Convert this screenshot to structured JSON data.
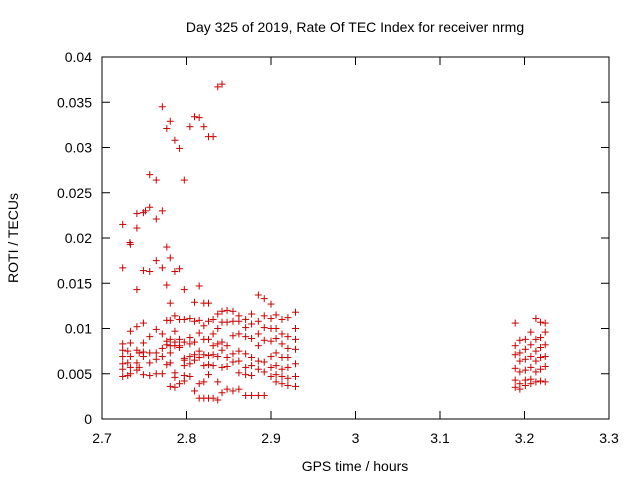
{
  "chart_data": {
    "type": "scatter",
    "title": "Day 325 of 2019, Rate Of TEC Index for receiver nrmg",
    "xlabel": "GPS time / hours",
    "ylabel": "ROTI / TECUs",
    "xlim": [
      2.7,
      3.3
    ],
    "ylim": [
      0,
      0.04
    ],
    "xticks": [
      "2.7",
      "2.8",
      "2.9",
      "3",
      "3.1",
      "3.2",
      "3.3"
    ],
    "yticks": [
      "0",
      "0.005",
      "0.01",
      "0.015",
      "0.02",
      "0.025",
      "0.03",
      "0.035",
      "0.04"
    ],
    "grid": false,
    "marker": "+",
    "series_color": "#cc0000",
    "series": [
      {
        "name": "ROTI",
        "points": [
          [
            2.7245,
            0.0215
          ],
          [
            2.7245,
            0.0167
          ],
          [
            2.7245,
            0.0083
          ],
          [
            2.7245,
            0.0076
          ],
          [
            2.7245,
            0.0069
          ],
          [
            2.7245,
            0.0061
          ],
          [
            2.7245,
            0.0055
          ],
          [
            2.7245,
            0.0047
          ],
          [
            2.7305,
            0.0075
          ],
          [
            2.7305,
            0.0062
          ],
          [
            2.7305,
            0.0048
          ],
          [
            2.733,
            0.0195
          ],
          [
            2.7336,
            0.0193
          ],
          [
            2.7336,
            0.0097
          ],
          [
            2.7336,
            0.0084
          ],
          [
            2.7336,
            0.0069
          ],
          [
            2.7336,
            0.0057
          ],
          [
            2.7336,
            0.005
          ],
          [
            2.7413,
            0.0227
          ],
          [
            2.7413,
            0.0211
          ],
          [
            2.7413,
            0.0143
          ],
          [
            2.7413,
            0.0102
          ],
          [
            2.7413,
            0.0076
          ],
          [
            2.7413,
            0.0062
          ],
          [
            2.7413,
            0.0054
          ],
          [
            2.744,
            0.0073
          ],
          [
            2.744,
            0.0057
          ],
          [
            2.749,
            0.0228
          ],
          [
            2.749,
            0.0164
          ],
          [
            2.749,
            0.0106
          ],
          [
            2.749,
            0.0084
          ],
          [
            2.749,
            0.0074
          ],
          [
            2.749,
            0.0069
          ],
          [
            2.749,
            0.0049
          ],
          [
            2.7515,
            0.023
          ],
          [
            2.7565,
            0.027
          ],
          [
            2.7565,
            0.0234
          ],
          [
            2.7565,
            0.0163
          ],
          [
            2.7565,
            0.0091
          ],
          [
            2.7565,
            0.0073
          ],
          [
            2.7565,
            0.0062
          ],
          [
            2.7565,
            0.0048
          ],
          [
            2.7642,
            0.0264
          ],
          [
            2.7642,
            0.0221
          ],
          [
            2.7642,
            0.0175
          ],
          [
            2.7642,
            0.0099
          ],
          [
            2.7642,
            0.0073
          ],
          [
            2.7642,
            0.0066
          ],
          [
            2.7642,
            0.005
          ],
          [
            2.7714,
            0.0345
          ],
          [
            2.7714,
            0.023
          ],
          [
            2.7714,
            0.0167
          ],
          [
            2.7714,
            0.0094
          ],
          [
            2.7714,
            0.0078
          ],
          [
            2.7714,
            0.0069
          ],
          [
            2.7714,
            0.005
          ],
          [
            2.7767,
            0.0321
          ],
          [
            2.7767,
            0.019
          ],
          [
            2.7767,
            0.0148
          ],
          [
            2.7767,
            0.0109
          ],
          [
            2.7767,
            0.0086
          ],
          [
            2.7767,
            0.0082
          ],
          [
            2.7767,
            0.006
          ],
          [
            2.7808,
            0.0329
          ],
          [
            2.7808,
            0.0178
          ],
          [
            2.7808,
            0.0128
          ],
          [
            2.7808,
            0.0109
          ],
          [
            2.7808,
            0.0088
          ],
          [
            2.7808,
            0.0081
          ],
          [
            2.7808,
            0.0073
          ],
          [
            2.7808,
            0.0062
          ],
          [
            2.7808,
            0.0036
          ],
          [
            2.7863,
            0.0308
          ],
          [
            2.7863,
            0.0163
          ],
          [
            2.7863,
            0.0114
          ],
          [
            2.7863,
            0.0097
          ],
          [
            2.7863,
            0.0085
          ],
          [
            2.7863,
            0.0081
          ],
          [
            2.7863,
            0.0051
          ],
          [
            2.7863,
            0.0046
          ],
          [
            2.7863,
            0.0035
          ],
          [
            2.7918,
            0.0299
          ],
          [
            2.7918,
            0.0166
          ],
          [
            2.7918,
            0.011
          ],
          [
            2.7918,
            0.0088
          ],
          [
            2.7918,
            0.0081
          ],
          [
            2.7918,
            0.0079
          ],
          [
            2.7918,
            0.0039
          ],
          [
            2.7974,
            0.0264
          ],
          [
            2.7974,
            0.0143
          ],
          [
            2.7974,
            0.011
          ],
          [
            2.7974,
            0.0085
          ],
          [
            2.7974,
            0.0067
          ],
          [
            2.7974,
            0.0065
          ],
          [
            2.7974,
            0.0059
          ],
          [
            2.7974,
            0.0048
          ],
          [
            2.7974,
            0.0042
          ],
          [
            2.804,
            0.0323
          ],
          [
            2.804,
            0.0111
          ],
          [
            2.804,
            0.009
          ],
          [
            2.804,
            0.0083
          ],
          [
            2.804,
            0.0069
          ],
          [
            2.804,
            0.0061
          ],
          [
            2.804,
            0.0047
          ],
          [
            2.8095,
            0.0334
          ],
          [
            2.8095,
            0.0129
          ],
          [
            2.8095,
            0.0108
          ],
          [
            2.8095,
            0.0085
          ],
          [
            2.8095,
            0.0071
          ],
          [
            2.8095,
            0.0065
          ],
          [
            2.8095,
            0.0031
          ],
          [
            2.815,
            0.0333
          ],
          [
            2.815,
            0.0147
          ],
          [
            2.815,
            0.0109
          ],
          [
            2.815,
            0.0095
          ],
          [
            2.815,
            0.0075
          ],
          [
            2.815,
            0.0068
          ],
          [
            2.815,
            0.0039
          ],
          [
            2.815,
            0.0023
          ],
          [
            2.8205,
            0.0323
          ],
          [
            2.8205,
            0.0128
          ],
          [
            2.8205,
            0.0103
          ],
          [
            2.8205,
            0.0088
          ],
          [
            2.8205,
            0.0071
          ],
          [
            2.8205,
            0.0059
          ],
          [
            2.8205,
            0.0041
          ],
          [
            2.8205,
            0.0023
          ],
          [
            2.826,
            0.0312
          ],
          [
            2.826,
            0.0128
          ],
          [
            2.826,
            0.0108
          ],
          [
            2.826,
            0.0088
          ],
          [
            2.826,
            0.007
          ],
          [
            2.826,
            0.006
          ],
          [
            2.826,
            0.0049
          ],
          [
            2.826,
            0.0023
          ],
          [
            2.8315,
            0.0312
          ],
          [
            2.8315,
            0.011
          ],
          [
            2.8315,
            0.0094
          ],
          [
            2.8315,
            0.0081
          ],
          [
            2.8315,
            0.0071
          ],
          [
            2.8315,
            0.0059
          ],
          [
            2.8315,
            0.0023
          ],
          [
            2.837,
            0.0367
          ],
          [
            2.837,
            0.0116
          ],
          [
            2.837,
            0.01
          ],
          [
            2.837,
            0.0083
          ],
          [
            2.837,
            0.0069
          ],
          [
            2.837,
            0.0041
          ],
          [
            2.837,
            0.0021
          ],
          [
            2.842,
            0.037
          ],
          [
            2.842,
            0.0119
          ],
          [
            2.842,
            0.0107
          ],
          [
            2.842,
            0.0085
          ],
          [
            2.842,
            0.0076
          ],
          [
            2.842,
            0.0057
          ],
          [
            2.842,
            0.0029
          ],
          [
            2.848,
            0.012
          ],
          [
            2.848,
            0.0107
          ],
          [
            2.848,
            0.0081
          ],
          [
            2.848,
            0.0068
          ],
          [
            2.848,
            0.0058
          ],
          [
            2.848,
            0.0033
          ],
          [
            2.855,
            0.0119
          ],
          [
            2.855,
            0.0108
          ],
          [
            2.855,
            0.0092
          ],
          [
            2.855,
            0.0072
          ],
          [
            2.855,
            0.0063
          ],
          [
            2.855,
            0.0031
          ],
          [
            2.862,
            0.0114
          ],
          [
            2.862,
            0.0108
          ],
          [
            2.862,
            0.0094
          ],
          [
            2.862,
            0.0075
          ],
          [
            2.862,
            0.0064
          ],
          [
            2.862,
            0.0051
          ],
          [
            2.862,
            0.0033
          ],
          [
            2.87,
            0.011
          ],
          [
            2.87,
            0.0101
          ],
          [
            2.87,
            0.0091
          ],
          [
            2.87,
            0.0072
          ],
          [
            2.87,
            0.0057
          ],
          [
            2.87,
            0.0049
          ],
          [
            2.87,
            0.0026
          ],
          [
            2.877,
            0.0116
          ],
          [
            2.877,
            0.0105
          ],
          [
            2.877,
            0.0089
          ],
          [
            2.877,
            0.0068
          ],
          [
            2.877,
            0.0059
          ],
          [
            2.877,
            0.0048
          ],
          [
            2.877,
            0.0026
          ],
          [
            2.885,
            0.0137
          ],
          [
            2.885,
            0.0108
          ],
          [
            2.885,
            0.0094
          ],
          [
            2.885,
            0.0081
          ],
          [
            2.885,
            0.0064
          ],
          [
            2.885,
            0.0055
          ],
          [
            2.885,
            0.0026
          ],
          [
            2.892,
            0.0133
          ],
          [
            2.892,
            0.0114
          ],
          [
            2.892,
            0.0101
          ],
          [
            2.892,
            0.0087
          ],
          [
            2.892,
            0.0063
          ],
          [
            2.892,
            0.0052
          ],
          [
            2.892,
            0.0026
          ],
          [
            2.9,
            0.0127
          ],
          [
            2.9,
            0.0111
          ],
          [
            2.9,
            0.01
          ],
          [
            2.9,
            0.0086
          ],
          [
            2.9,
            0.0069
          ],
          [
            2.9,
            0.0057
          ],
          [
            2.9,
            0.0047
          ],
          [
            2.906,
            0.0115
          ],
          [
            2.906,
            0.01
          ],
          [
            2.906,
            0.0089
          ],
          [
            2.906,
            0.0073
          ],
          [
            2.906,
            0.0059
          ],
          [
            2.906,
            0.0049
          ],
          [
            2.906,
            0.0041
          ],
          [
            2.913,
            0.011
          ],
          [
            2.913,
            0.0094
          ],
          [
            2.913,
            0.0083
          ],
          [
            2.913,
            0.0068
          ],
          [
            2.913,
            0.0055
          ],
          [
            2.913,
            0.0047
          ],
          [
            2.913,
            0.0039
          ],
          [
            2.92,
            0.0112
          ],
          [
            2.92,
            0.0091
          ],
          [
            2.92,
            0.0078
          ],
          [
            2.92,
            0.0068
          ],
          [
            2.92,
            0.0057
          ],
          [
            2.92,
            0.0045
          ],
          [
            2.92,
            0.0037
          ],
          [
            2.929,
            0.0118
          ],
          [
            2.929,
            0.01
          ],
          [
            2.929,
            0.0088
          ],
          [
            2.929,
            0.0077
          ],
          [
            2.929,
            0.0061
          ],
          [
            2.929,
            0.0047
          ],
          [
            2.929,
            0.0036
          ],
          [
            3.189,
            0.0106
          ],
          [
            3.189,
            0.0081
          ],
          [
            3.189,
            0.0071
          ],
          [
            3.189,
            0.0056
          ],
          [
            3.189,
            0.0043
          ],
          [
            3.189,
            0.0035
          ],
          [
            3.1945,
            0.0087
          ],
          [
            3.1945,
            0.0073
          ],
          [
            3.1945,
            0.0064
          ],
          [
            3.1945,
            0.0052
          ],
          [
            3.1945,
            0.0039
          ],
          [
            3.1945,
            0.0033
          ],
          [
            3.201,
            0.0088
          ],
          [
            3.201,
            0.0077
          ],
          [
            3.201,
            0.0066
          ],
          [
            3.201,
            0.0054
          ],
          [
            3.201,
            0.0043
          ],
          [
            3.201,
            0.0037
          ],
          [
            3.2075,
            0.0096
          ],
          [
            3.2075,
            0.0082
          ],
          [
            3.2075,
            0.0069
          ],
          [
            3.2075,
            0.0057
          ],
          [
            3.2075,
            0.0044
          ],
          [
            3.2075,
            0.0039
          ],
          [
            3.2135,
            0.0111
          ],
          [
            3.2135,
            0.0088
          ],
          [
            3.2135,
            0.0075
          ],
          [
            3.2135,
            0.0064
          ],
          [
            3.2135,
            0.0052
          ],
          [
            3.2135,
            0.0041
          ],
          [
            3.219,
            0.0107
          ],
          [
            3.219,
            0.009
          ],
          [
            3.219,
            0.0079
          ],
          [
            3.219,
            0.0068
          ],
          [
            3.219,
            0.0055
          ],
          [
            3.219,
            0.0042
          ],
          [
            3.2245,
            0.0106
          ],
          [
            3.2245,
            0.0096
          ],
          [
            3.2245,
            0.0082
          ],
          [
            3.2245,
            0.0069
          ],
          [
            3.2245,
            0.0058
          ],
          [
            3.2245,
            0.0041
          ]
        ]
      }
    ]
  }
}
